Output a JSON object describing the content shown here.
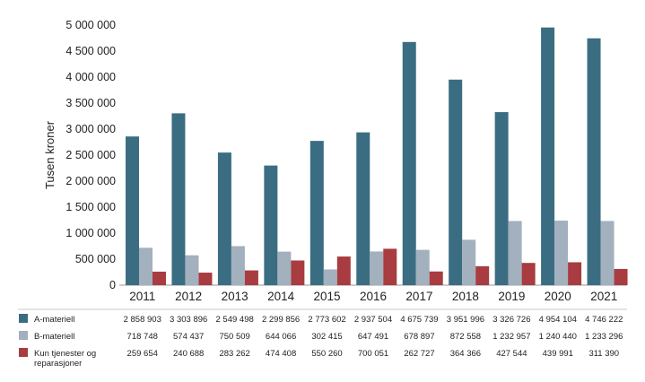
{
  "chart_data": {
    "type": "bar",
    "ylabel": "Tusen kroner",
    "ylim": [
      0,
      5000000
    ],
    "yticks": [
      "0",
      "500 000",
      "1 000 000",
      "1 500 000",
      "2 000 000",
      "2 500 000",
      "3 000 000",
      "3 500 000",
      "4 000 000",
      "4 500 000",
      "5 000 000"
    ],
    "categories": [
      "2011",
      "2012",
      "2013",
      "2014",
      "2015",
      "2016",
      "2017",
      "2018",
      "2019",
      "2020",
      "2021"
    ],
    "grid": false,
    "legend": "bottom-table",
    "series": [
      {
        "name": "A-materiell",
        "color": "#3b6d82",
        "values": [
          2858903,
          3303896,
          2549498,
          2299856,
          2773602,
          2937504,
          4675739,
          3951996,
          3326726,
          4954104,
          4746222
        ],
        "labels": [
          "2 858 903",
          "3 303 896",
          "2 549 498",
          "2 299 856",
          "2 773 602",
          "2 937 504",
          "4 675 739",
          "3 951 996",
          "3 326 726",
          "4 954 104",
          "4 746 222"
        ]
      },
      {
        "name": "B-materiell",
        "color": "#a3b0be",
        "values": [
          718748,
          574437,
          750509,
          644066,
          302415,
          647491,
          678897,
          872558,
          1232957,
          1240440,
          1233296
        ],
        "labels": [
          "718 748",
          "574 437",
          "750 509",
          "644 066",
          "302 415",
          "647 491",
          "678 897",
          "872 558",
          "1 232 957",
          "1 240 440",
          "1 233 296"
        ]
      },
      {
        "name": "Kun tjenester og reparasjoner",
        "name_lines": [
          "Kun tjenester og",
          "reparasjoner"
        ],
        "color": "#a83c40",
        "values": [
          259654,
          240688,
          283262,
          474408,
          550260,
          700051,
          262727,
          364366,
          427544,
          439991,
          311390
        ],
        "labels": [
          "259 654",
          "240 688",
          "283 262",
          "474 408",
          "550 260",
          "700 051",
          "262 727",
          "364 366",
          "427 544",
          "439 991",
          "311 390"
        ]
      }
    ]
  }
}
